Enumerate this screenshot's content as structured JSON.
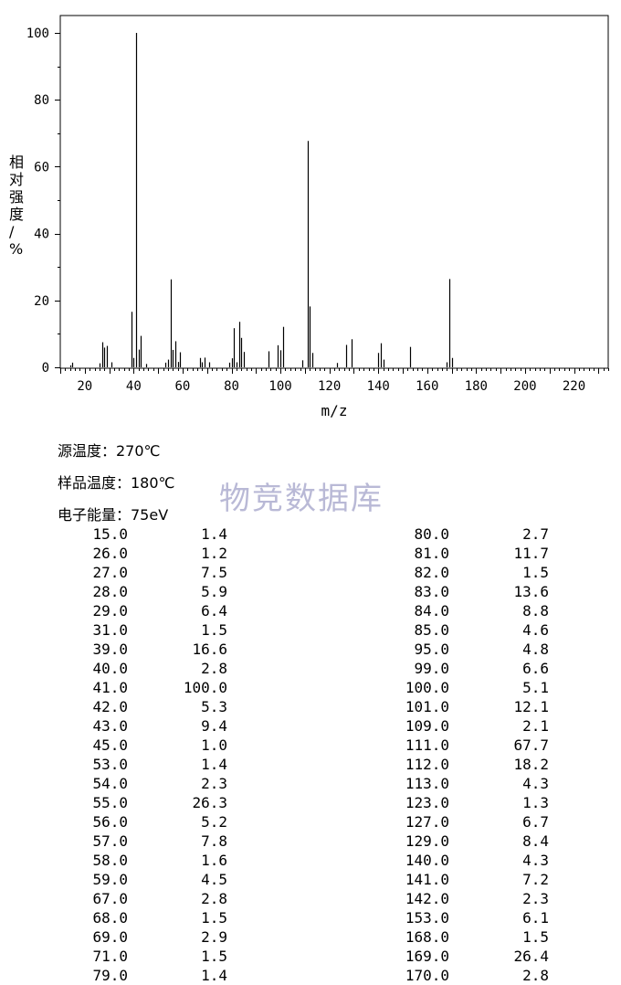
{
  "chart_data": {
    "type": "bar",
    "xlabel": "m/z",
    "ylabel": "相对强度/%",
    "xlim": [
      10,
      234
    ],
    "ylim": [
      0,
      100
    ],
    "x_ticks": [
      20,
      40,
      60,
      80,
      100,
      120,
      140,
      160,
      180,
      200,
      220
    ],
    "y_ticks": [
      0,
      20,
      40,
      60,
      80,
      100
    ],
    "peaks": [
      {
        "mz": 14,
        "intensity": 0.6
      },
      {
        "mz": 15,
        "intensity": 1.4
      },
      {
        "mz": 26,
        "intensity": 1.2
      },
      {
        "mz": 27,
        "intensity": 7.5
      },
      {
        "mz": 28,
        "intensity": 5.9
      },
      {
        "mz": 29,
        "intensity": 6.4
      },
      {
        "mz": 31,
        "intensity": 1.5
      },
      {
        "mz": 39,
        "intensity": 16.6
      },
      {
        "mz": 40,
        "intensity": 2.8
      },
      {
        "mz": 41,
        "intensity": 100.0
      },
      {
        "mz": 42,
        "intensity": 5.3
      },
      {
        "mz": 43,
        "intensity": 9.4
      },
      {
        "mz": 45,
        "intensity": 1.0
      },
      {
        "mz": 53,
        "intensity": 1.4
      },
      {
        "mz": 54,
        "intensity": 2.3
      },
      {
        "mz": 55,
        "intensity": 26.3
      },
      {
        "mz": 56,
        "intensity": 5.2
      },
      {
        "mz": 57,
        "intensity": 7.8
      },
      {
        "mz": 58,
        "intensity": 1.6
      },
      {
        "mz": 59,
        "intensity": 4.5
      },
      {
        "mz": 67,
        "intensity": 2.8
      },
      {
        "mz": 68,
        "intensity": 1.5
      },
      {
        "mz": 69,
        "intensity": 2.9
      },
      {
        "mz": 71,
        "intensity": 1.5
      },
      {
        "mz": 79,
        "intensity": 1.4
      },
      {
        "mz": 80,
        "intensity": 2.7
      },
      {
        "mz": 81,
        "intensity": 11.7
      },
      {
        "mz": 82,
        "intensity": 1.5
      },
      {
        "mz": 83,
        "intensity": 13.6
      },
      {
        "mz": 84,
        "intensity": 8.8
      },
      {
        "mz": 85,
        "intensity": 4.6
      },
      {
        "mz": 95,
        "intensity": 4.8
      },
      {
        "mz": 99,
        "intensity": 6.6
      },
      {
        "mz": 100,
        "intensity": 5.1
      },
      {
        "mz": 101,
        "intensity": 12.1
      },
      {
        "mz": 109,
        "intensity": 2.1
      },
      {
        "mz": 111,
        "intensity": 67.7
      },
      {
        "mz": 112,
        "intensity": 18.2
      },
      {
        "mz": 113,
        "intensity": 4.3
      },
      {
        "mz": 123,
        "intensity": 1.3
      },
      {
        "mz": 127,
        "intensity": 6.7
      },
      {
        "mz": 129,
        "intensity": 8.4
      },
      {
        "mz": 140,
        "intensity": 4.3
      },
      {
        "mz": 141,
        "intensity": 7.2
      },
      {
        "mz": 142,
        "intensity": 2.3
      },
      {
        "mz": 153,
        "intensity": 6.1
      },
      {
        "mz": 168,
        "intensity": 1.5
      },
      {
        "mz": 169,
        "intensity": 26.4
      },
      {
        "mz": 170,
        "intensity": 2.8
      }
    ]
  },
  "conditions": {
    "source_temp": "源温度：270℃",
    "sample_temp": "样品温度：180℃",
    "electron_energy": "电子能量：75eV"
  },
  "watermark": "物竞数据库",
  "table": {
    "rows": [
      [
        "15.0",
        "1.4",
        "80.0",
        "2.7"
      ],
      [
        "26.0",
        "1.2",
        "81.0",
        "11.7"
      ],
      [
        "27.0",
        "7.5",
        "82.0",
        "1.5"
      ],
      [
        "28.0",
        "5.9",
        "83.0",
        "13.6"
      ],
      [
        "29.0",
        "6.4",
        "84.0",
        "8.8"
      ],
      [
        "31.0",
        "1.5",
        "85.0",
        "4.6"
      ],
      [
        "39.0",
        "16.6",
        "95.0",
        "4.8"
      ],
      [
        "40.0",
        "2.8",
        "99.0",
        "6.6"
      ],
      [
        "41.0",
        "100.0",
        "100.0",
        "5.1"
      ],
      [
        "42.0",
        "5.3",
        "101.0",
        "12.1"
      ],
      [
        "43.0",
        "9.4",
        "109.0",
        "2.1"
      ],
      [
        "45.0",
        "1.0",
        "111.0",
        "67.7"
      ],
      [
        "53.0",
        "1.4",
        "112.0",
        "18.2"
      ],
      [
        "54.0",
        "2.3",
        "113.0",
        "4.3"
      ],
      [
        "55.0",
        "26.3",
        "123.0",
        "1.3"
      ],
      [
        "56.0",
        "5.2",
        "127.0",
        "6.7"
      ],
      [
        "57.0",
        "7.8",
        "129.0",
        "8.4"
      ],
      [
        "58.0",
        "1.6",
        "140.0",
        "4.3"
      ],
      [
        "59.0",
        "4.5",
        "141.0",
        "7.2"
      ],
      [
        "67.0",
        "2.8",
        "142.0",
        "2.3"
      ],
      [
        "68.0",
        "1.5",
        "153.0",
        "6.1"
      ],
      [
        "69.0",
        "2.9",
        "168.0",
        "1.5"
      ],
      [
        "71.0",
        "1.5",
        "169.0",
        "26.4"
      ],
      [
        "79.0",
        "1.4",
        "170.0",
        "2.8"
      ]
    ]
  }
}
